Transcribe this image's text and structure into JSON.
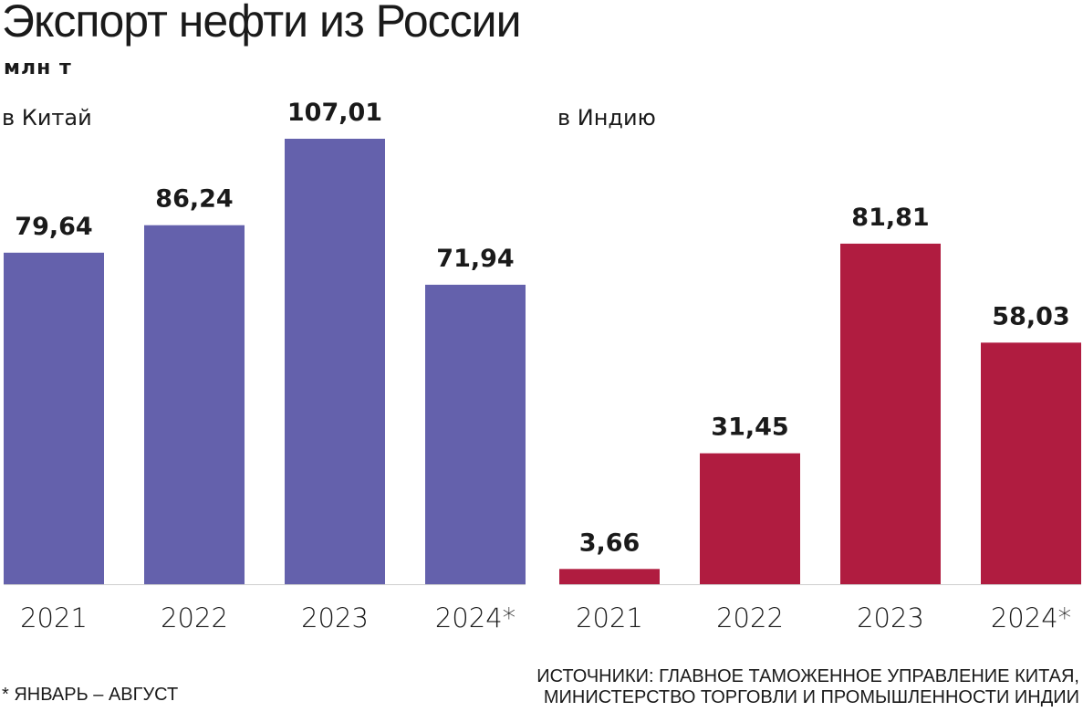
{
  "title": "Экспорт нефти из России",
  "unit": "млн т",
  "footnote": "* ЯНВАРЬ – АВГУСТ",
  "sources": [
    "ИСТОЧНИКИ: ГЛАВНОЕ ТАМОЖЕННОЕ УПРАВЛЕНИЕ КИТАЯ,",
    "МИНИСТЕРСТВО ТОРГОВЛИ И ПРОМЫШЛЕННОСТИ ИНДИИ"
  ],
  "colors": {
    "china": "#6461ac",
    "india": "#b01c40"
  },
  "chart_data": [
    {
      "type": "bar",
      "title": "в Китай",
      "categories": [
        "2021",
        "2022",
        "2023",
        "2024*"
      ],
      "values": [
        79.64,
        86.24,
        107.01,
        71.94
      ],
      "value_labels": [
        "79,64",
        "86,24",
        "107,01",
        "71,94"
      ],
      "ylim": [
        0,
        107.01
      ],
      "grid": false
    },
    {
      "type": "bar",
      "title": "в Индию",
      "categories": [
        "2021",
        "2022",
        "2023",
        "2024*"
      ],
      "values": [
        3.66,
        31.45,
        81.81,
        58.03
      ],
      "value_labels": [
        "3,66",
        "31,45",
        "81,81",
        "58,03"
      ],
      "ylim": [
        0,
        107.01
      ],
      "grid": false
    }
  ]
}
